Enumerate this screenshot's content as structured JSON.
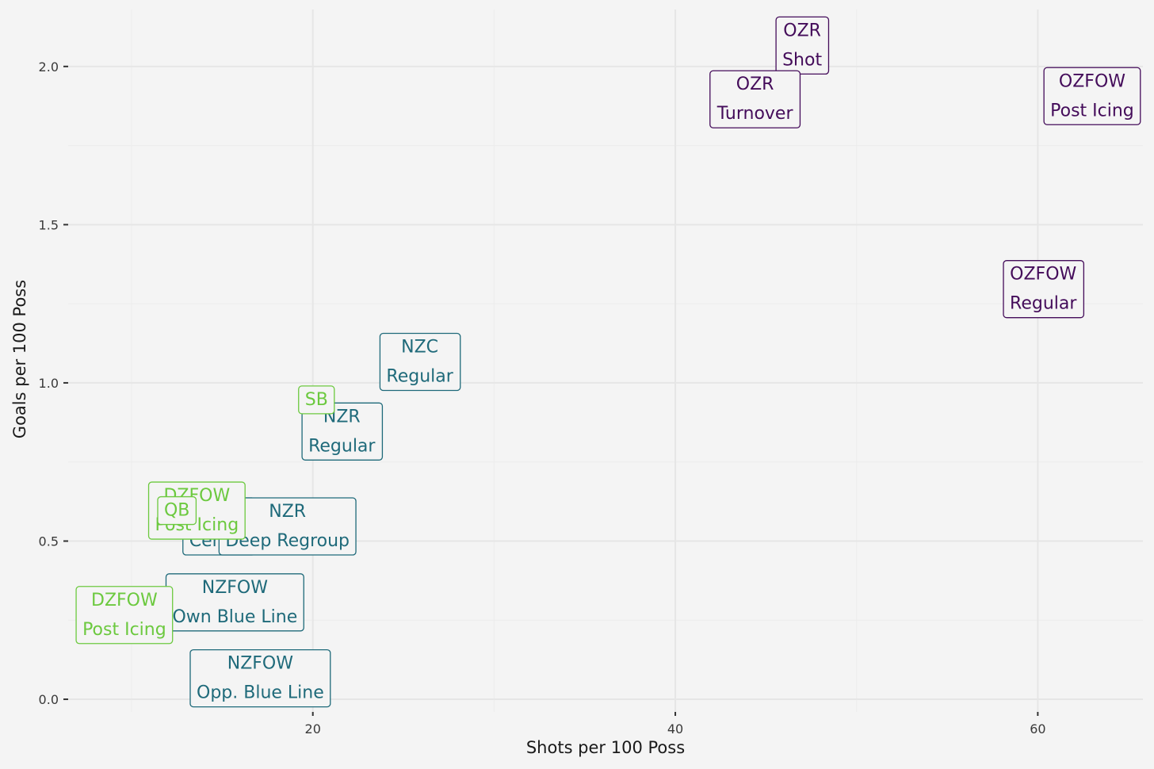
{
  "chart_data": {
    "type": "scatter",
    "title": "",
    "xlabel": "Shots per 100 Poss",
    "ylabel": "Goals per 100 Poss",
    "xlim": [
      6.5,
      65.8
    ],
    "ylim": [
      -0.04,
      2.18
    ],
    "x_ticks": [
      20,
      40,
      60
    ],
    "y_ticks": [
      0.0,
      0.5,
      1.0,
      1.5,
      2.0
    ],
    "x_tick_labels": [
      "20",
      "40",
      "60"
    ],
    "y_tick_labels": [
      "0.0",
      "0.5",
      "1.0",
      "1.5",
      "2.0"
    ],
    "grid": true,
    "legend": "none",
    "colors": {
      "group_offensive": "#440c5a",
      "group_neutral": "#1f6a7a",
      "group_defensive": "#6cc93f"
    },
    "points": [
      {
        "label": "OZR\nShot",
        "x": 47.0,
        "y": 2.07,
        "group": "group_offensive"
      },
      {
        "label": "OZR\nTurnover",
        "x": 44.4,
        "y": 1.9,
        "group": "group_offensive"
      },
      {
        "label": "OZFOW\nPost Icing",
        "x": 63.0,
        "y": 1.91,
        "group": "group_offensive"
      },
      {
        "label": "OZFOW\nRegular",
        "x": 60.3,
        "y": 1.3,
        "group": "group_offensive"
      },
      {
        "label": "NZC\nRegular",
        "x": 25.9,
        "y": 1.07,
        "group": "group_neutral"
      },
      {
        "label": "NZR\nRegular",
        "x": 21.6,
        "y": 0.85,
        "group": "group_neutral"
      },
      {
        "label": "NZR\nCenter",
        "x": 14.8,
        "y": 0.55,
        "group": "group_neutral"
      },
      {
        "label": "NZR\nDeep Regroup",
        "x": 18.6,
        "y": 0.55,
        "group": "group_neutral"
      },
      {
        "label": "NZFOW\nOwn Blue Line",
        "x": 15.7,
        "y": 0.31,
        "group": "group_neutral"
      },
      {
        "label": "NZFOW\nOpp. Blue Line",
        "x": 17.1,
        "y": 0.07,
        "group": "group_neutral"
      },
      {
        "label": "SB",
        "x": 20.2,
        "y": 0.95,
        "group": "group_defensive"
      },
      {
        "label": "DZFOW\nPost Icing",
        "x": 13.6,
        "y": 0.6,
        "group": "group_defensive"
      },
      {
        "label": "QB",
        "x": 12.5,
        "y": 0.6,
        "group": "group_defensive"
      },
      {
        "label": "DZFOW\nPost Icing",
        "x": 9.6,
        "y": 0.27,
        "group": "group_defensive"
      }
    ]
  }
}
